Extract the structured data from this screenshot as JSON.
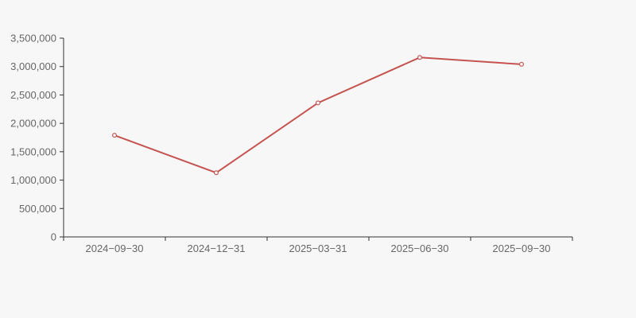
{
  "chart_data": {
    "type": "line",
    "title": "",
    "xlabel": "",
    "ylabel": "",
    "categories": [
      "2024-09-30",
      "2024-12-31",
      "2025-03-31",
      "2025-06-30",
      "2025-09-30"
    ],
    "series": [
      {
        "name": "series-1",
        "values": [
          1790000,
          1130000,
          2360000,
          3160000,
          3040000
        ]
      }
    ],
    "ylim": [
      0,
      3500000
    ],
    "ytick_step": 500000,
    "ytick_labels": [
      "0",
      "500,000",
      "1,000,000",
      "1,500,000",
      "2,000,000",
      "2,500,000",
      "3,000,000",
      "3,500,000"
    ],
    "grid": false,
    "legend_position": "none",
    "marker": "open-circle",
    "colors": {
      "line": "#c5534f",
      "marker_fill": "#ffffff",
      "axis": "#333333",
      "tick_label": "#666666",
      "background": "#f7f7f7"
    }
  }
}
